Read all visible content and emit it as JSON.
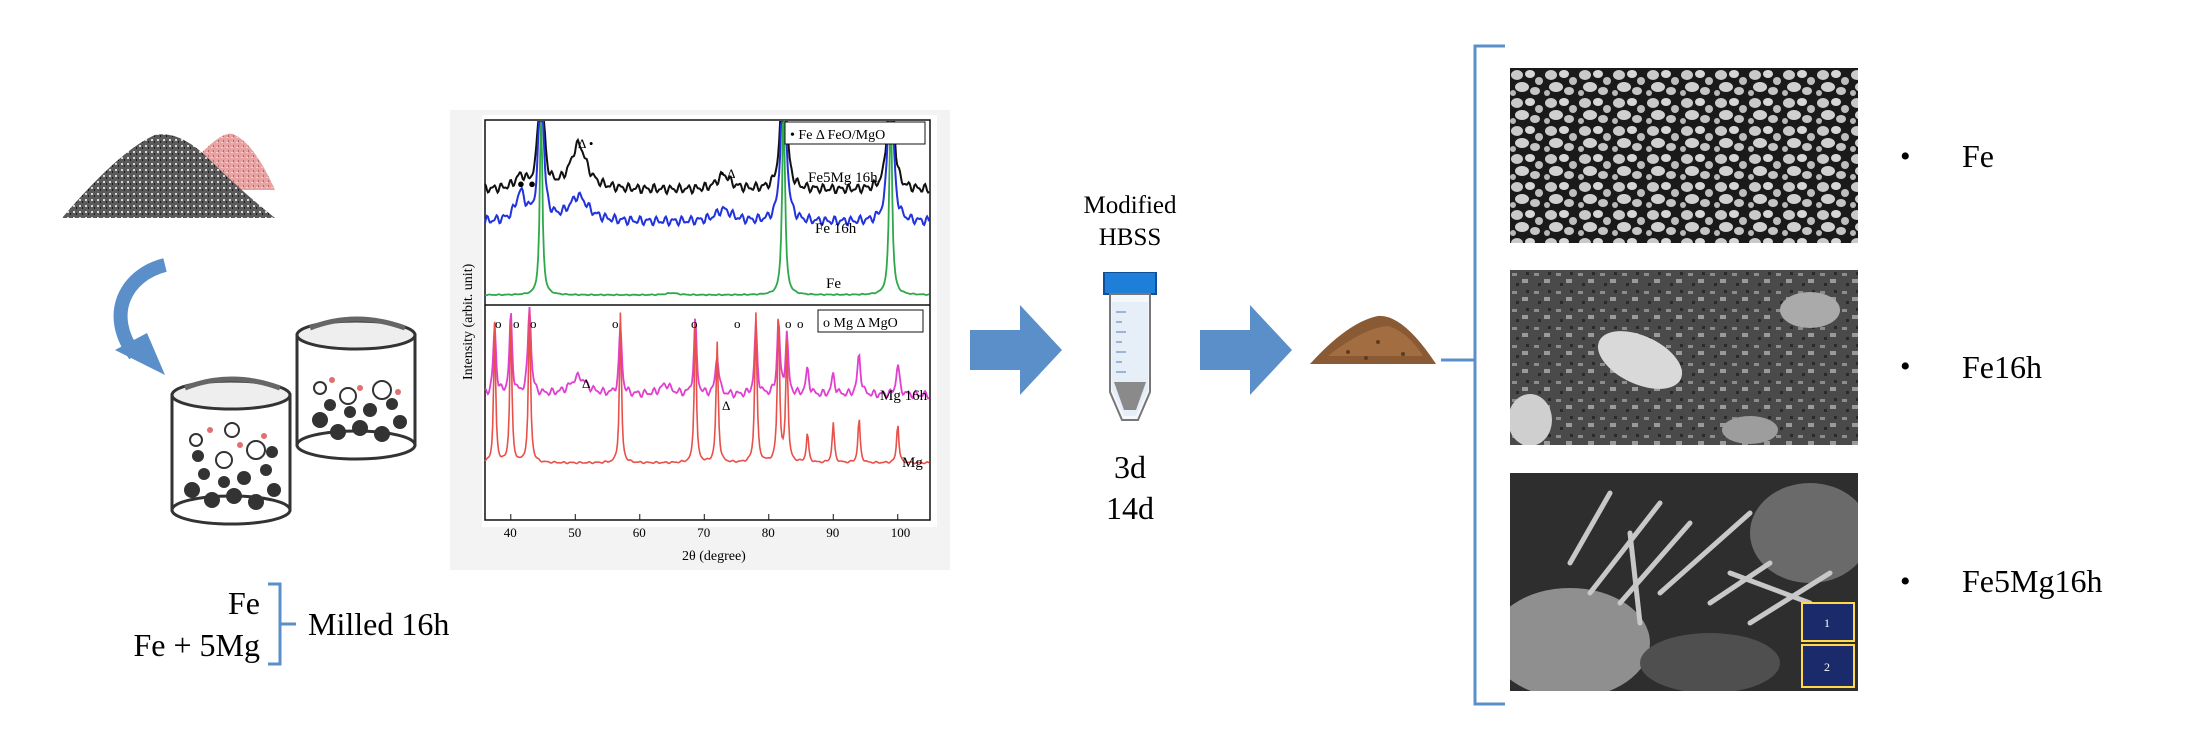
{
  "materials": {
    "top": "Fe",
    "bottom": "Fe + 5Mg",
    "process": "Milled 16h"
  },
  "xrd": {
    "ylabel": "Intensity (arbit. unit)",
    "xlabel": "2θ (degree)",
    "ticks": [
      "40",
      "50",
      "60",
      "70",
      "80",
      "90",
      "100"
    ],
    "upper_legend": "• Fe   Δ FeO/MgO",
    "lower_legend": "o Mg   Δ MgO",
    "curve_labels": {
      "fe5mg": "Fe5Mg 16h",
      "fe16h": "Fe 16h",
      "fe": "Fe",
      "mg16h": "Mg 16h",
      "mg": "Mg"
    },
    "colors": {
      "fe5mg": "#111111",
      "fe16h": "#2233dd",
      "fe": "#2ea84a",
      "mg16h": "#e040d0",
      "mg": "#e8504a"
    }
  },
  "immersion": {
    "solution_line1": "Modified",
    "solution_line2": "HBSS",
    "duration1": "3d",
    "duration2": "14d"
  },
  "sem": {
    "labels": [
      "Fe",
      "Fe16h",
      "Fe5Mg16h"
    ],
    "bullet": "•",
    "inset_labels": [
      "1",
      "2"
    ]
  },
  "colors": {
    "arrow": "#5b8fc9",
    "bracket": "#5b8fc9",
    "tube_cap": "#1e7fd8"
  }
}
